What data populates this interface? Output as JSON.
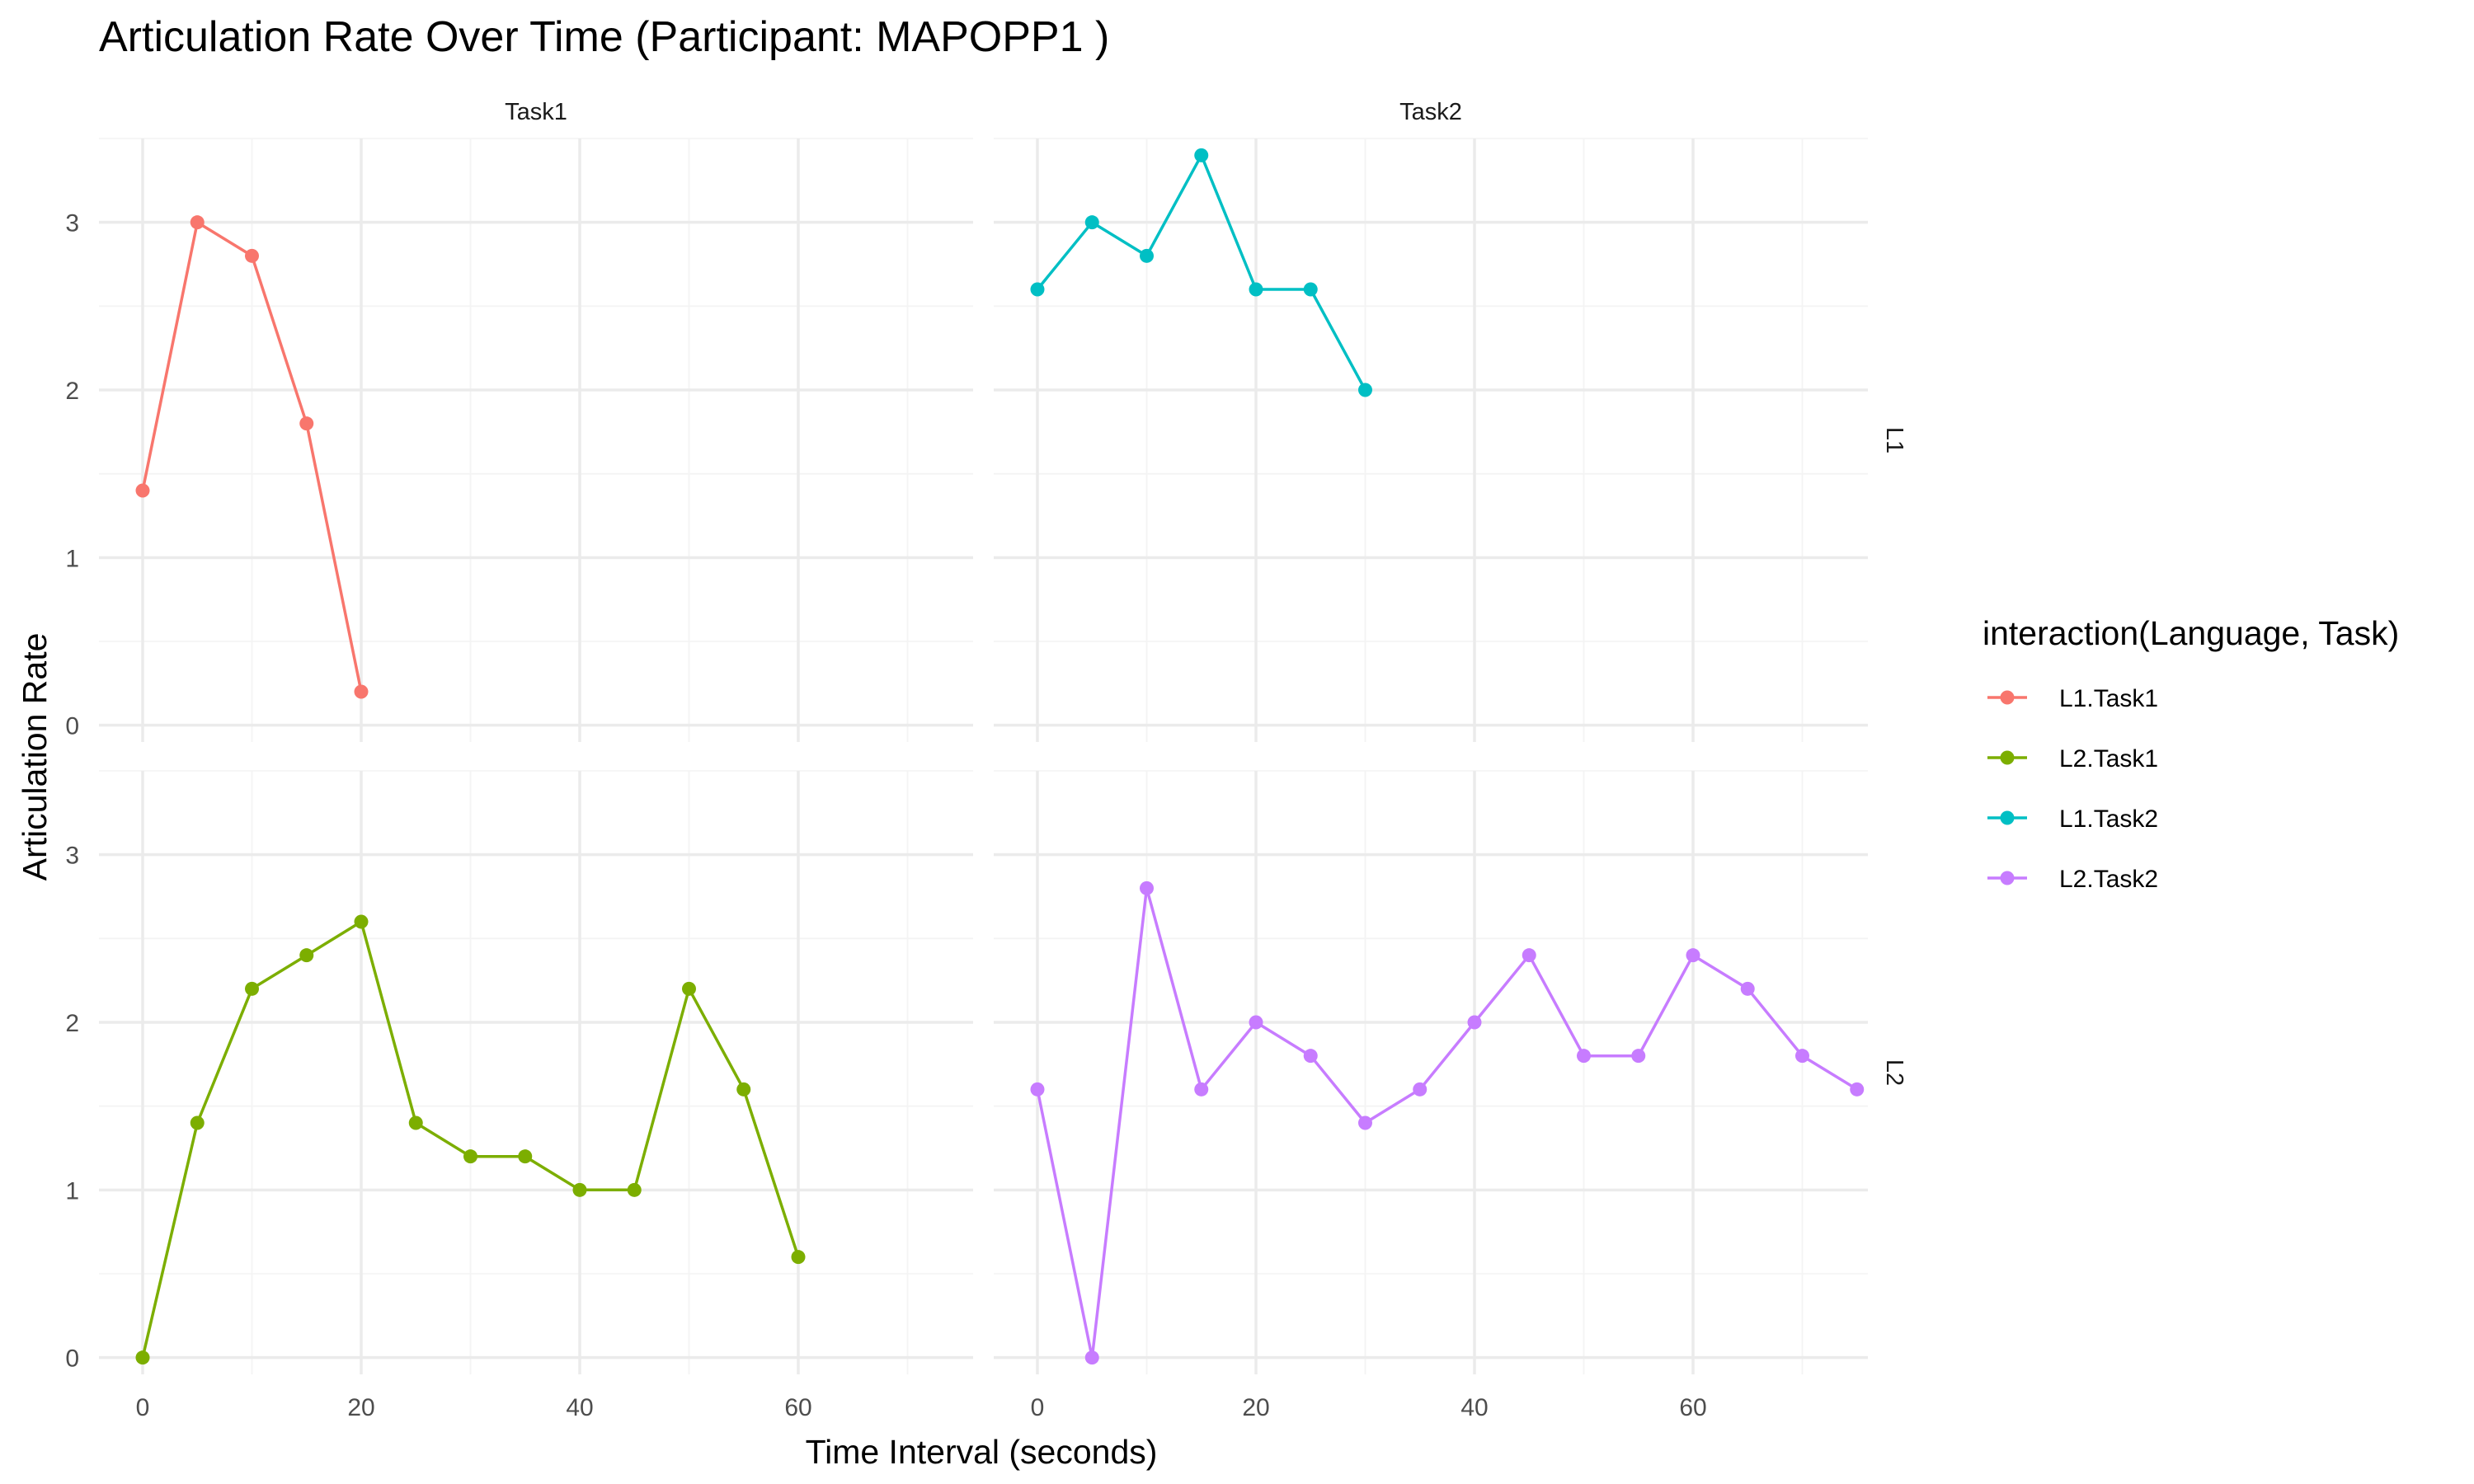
{
  "chart_data": {
    "type": "line",
    "title": "Articulation Rate Over Time (Participant: MAPOPP1 )",
    "xlabel": "Time Interval (seconds)",
    "ylabel": "Articulation Rate",
    "xlim": [
      -4,
      76
    ],
    "ylim": [
      -0.1,
      3.5
    ],
    "x_ticks": [
      0,
      20,
      40,
      60
    ],
    "y_ticks": [
      0,
      1,
      2,
      3
    ],
    "grid": true,
    "facet_cols": [
      "Task1",
      "Task2"
    ],
    "facet_rows": [
      "L1",
      "L2"
    ],
    "legend": {
      "title": "interaction(Language, Task)",
      "placement": "right",
      "entries": [
        "L1.Task1",
        "L2.Task1",
        "L1.Task2",
        "L2.Task2"
      ]
    },
    "series": [
      {
        "name": "L1.Task1",
        "color": "#F8766D",
        "panel_row": "L1",
        "panel_col": "Task1",
        "x": [
          0,
          5,
          10,
          15,
          20
        ],
        "y": [
          1.4,
          3.0,
          2.8,
          1.8,
          0.2
        ]
      },
      {
        "name": "L2.Task1",
        "color": "#7CAE00",
        "panel_row": "L2",
        "panel_col": "Task1",
        "x": [
          0,
          5,
          10,
          15,
          20,
          25,
          30,
          35,
          40,
          45,
          50,
          55,
          60
        ],
        "y": [
          0.0,
          1.4,
          2.2,
          2.4,
          2.6,
          1.4,
          1.2,
          1.2,
          1.0,
          1.0,
          2.2,
          1.6,
          0.6
        ]
      },
      {
        "name": "L1.Task2",
        "color": "#00BFC4",
        "panel_row": "L1",
        "panel_col": "Task2",
        "x": [
          0,
          5,
          10,
          15,
          20,
          25,
          30
        ],
        "y": [
          2.6,
          3.0,
          2.8,
          3.4,
          2.6,
          2.6,
          2.0
        ]
      },
      {
        "name": "L2.Task2",
        "color": "#C77CFF",
        "panel_row": "L2",
        "panel_col": "Task2",
        "x": [
          0,
          5,
          10,
          15,
          20,
          25,
          30,
          35,
          40,
          45,
          50,
          55,
          60,
          65,
          70,
          75
        ],
        "y": [
          1.6,
          0.0,
          2.8,
          1.6,
          2.0,
          1.8,
          1.4,
          1.6,
          2.0,
          2.4,
          1.8,
          1.8,
          2.4,
          2.2,
          1.8,
          1.6
        ]
      }
    ]
  }
}
